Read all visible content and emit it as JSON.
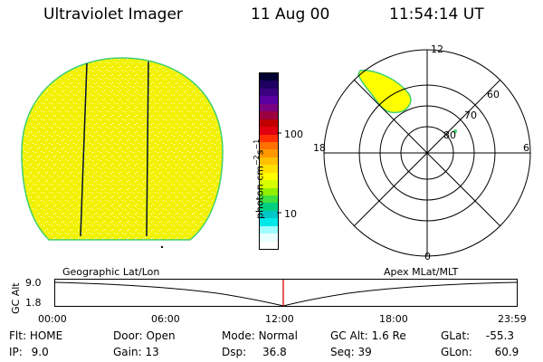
{
  "header": {
    "title": "Ultraviolet Imager",
    "date": "11 Aug 00",
    "time": "11:54:14 UT"
  },
  "colorbar": {
    "unit_label": "photon cm",
    "unit_exp1": "−2",
    "unit_mid": "s",
    "unit_exp2": "−1",
    "ticks": [
      "100",
      "10"
    ],
    "colors": [
      "#000033",
      "#1f0060",
      "#3a0080",
      "#5a00a0",
      "#7a0080",
      "#9a0040",
      "#c00000",
      "#e00010",
      "#ff3000",
      "#ff7000",
      "#ff9800",
      "#ffc000",
      "#ffe000",
      "#ffff00",
      "#d8ff00",
      "#90f000",
      "#40e040",
      "#00d080",
      "#00c8c8",
      "#00e8e8",
      "#a0ffff",
      "#e8ffff",
      "#ffffff"
    ]
  },
  "polar_plot": {
    "mlt_labels": {
      "top": "12",
      "right": "6",
      "bottom": "0",
      "left": "18"
    },
    "lat_labels": [
      "60",
      "70",
      "80"
    ]
  },
  "timeline": {
    "left_label": "Geographic Lat/Lon",
    "right_label": "Apex MLat/MLT",
    "axis_title": "GC Alt",
    "y_top": "9.0",
    "y_bottom": "1.8",
    "x_labels": [
      "00:00",
      "06:00",
      "12:00",
      "18:00",
      "23:59"
    ]
  },
  "status": {
    "row1": [
      {
        "key": "Flt:",
        "value": "HOME"
      },
      {
        "key": "Door:",
        "value": "Open"
      },
      {
        "key": "Mode:",
        "value": "Normal"
      },
      {
        "key": "GC Alt:",
        "value": "1.6 Re"
      },
      {
        "key": "GLat:",
        "value": "-55.3"
      }
    ],
    "row2": [
      {
        "key": "IP:",
        "value": "9.0"
      },
      {
        "key": "Gain:",
        "value": "13"
      },
      {
        "key": "Dsp:",
        "value": "36.8"
      },
      {
        "key": "Seq:",
        "value": "39"
      },
      {
        "key": "GLon:",
        "value": "60.9"
      }
    ]
  }
}
